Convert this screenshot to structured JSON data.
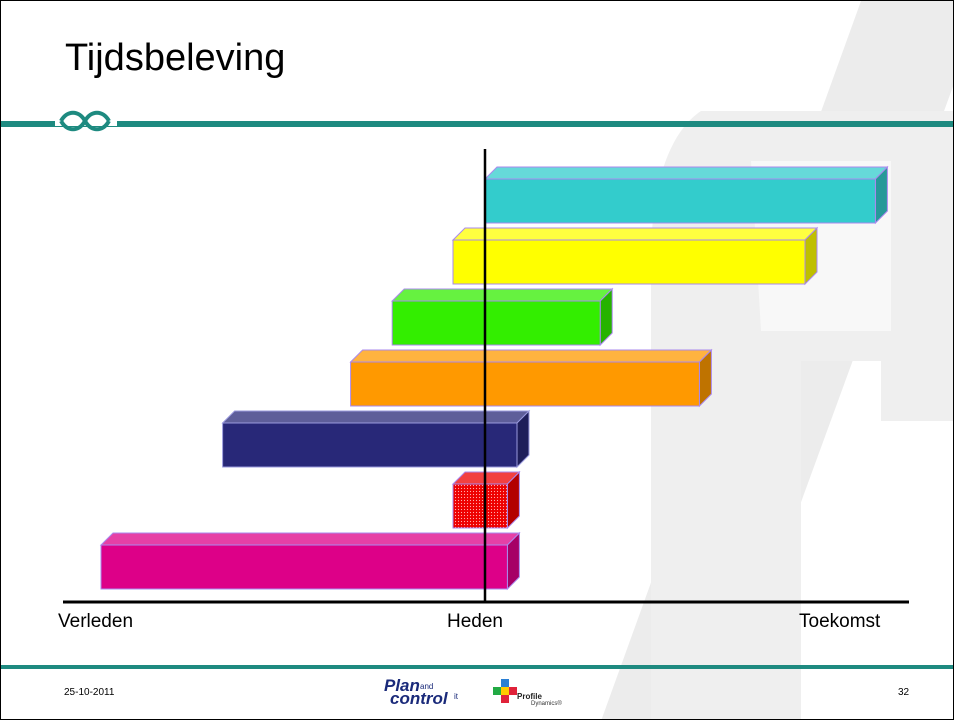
{
  "slide": {
    "title": "Tijdsbeleving",
    "footer_date": "25-10-2011",
    "page_number": "32"
  },
  "axis": {
    "past_label": "Verleden",
    "present_label": "Heden",
    "future_label": "Toekomst"
  },
  "timeline_bars": [
    {
      "start": 0.0,
      "end": 1.22,
      "color": "#33cccc"
    },
    {
      "start": -0.1,
      "end": 1.0,
      "color": "#ffff00"
    },
    {
      "start": -0.29,
      "end": 0.36,
      "color": "#33ee00"
    },
    {
      "start": -0.42,
      "end": 0.67,
      "color": "#ff9900"
    },
    {
      "start": -0.82,
      "end": 0.1,
      "color": "#282878",
      "stroke": "#9999dd"
    },
    {
      "start": -0.1,
      "end": 0.07,
      "color": "#ee0000",
      "pattern": true
    },
    {
      "start": -1.2,
      "end": 0.07,
      "color": "#dd0088"
    }
  ],
  "logos": {
    "plan_main": "Plan",
    "plan_and": "and",
    "plan_control": "control",
    "plan_it": "it",
    "profile_name": "Profile",
    "profile_sub": "Dynamics®"
  },
  "colors": {
    "accent_line": "#1e8a80",
    "watermark": "#e8e8e8"
  }
}
